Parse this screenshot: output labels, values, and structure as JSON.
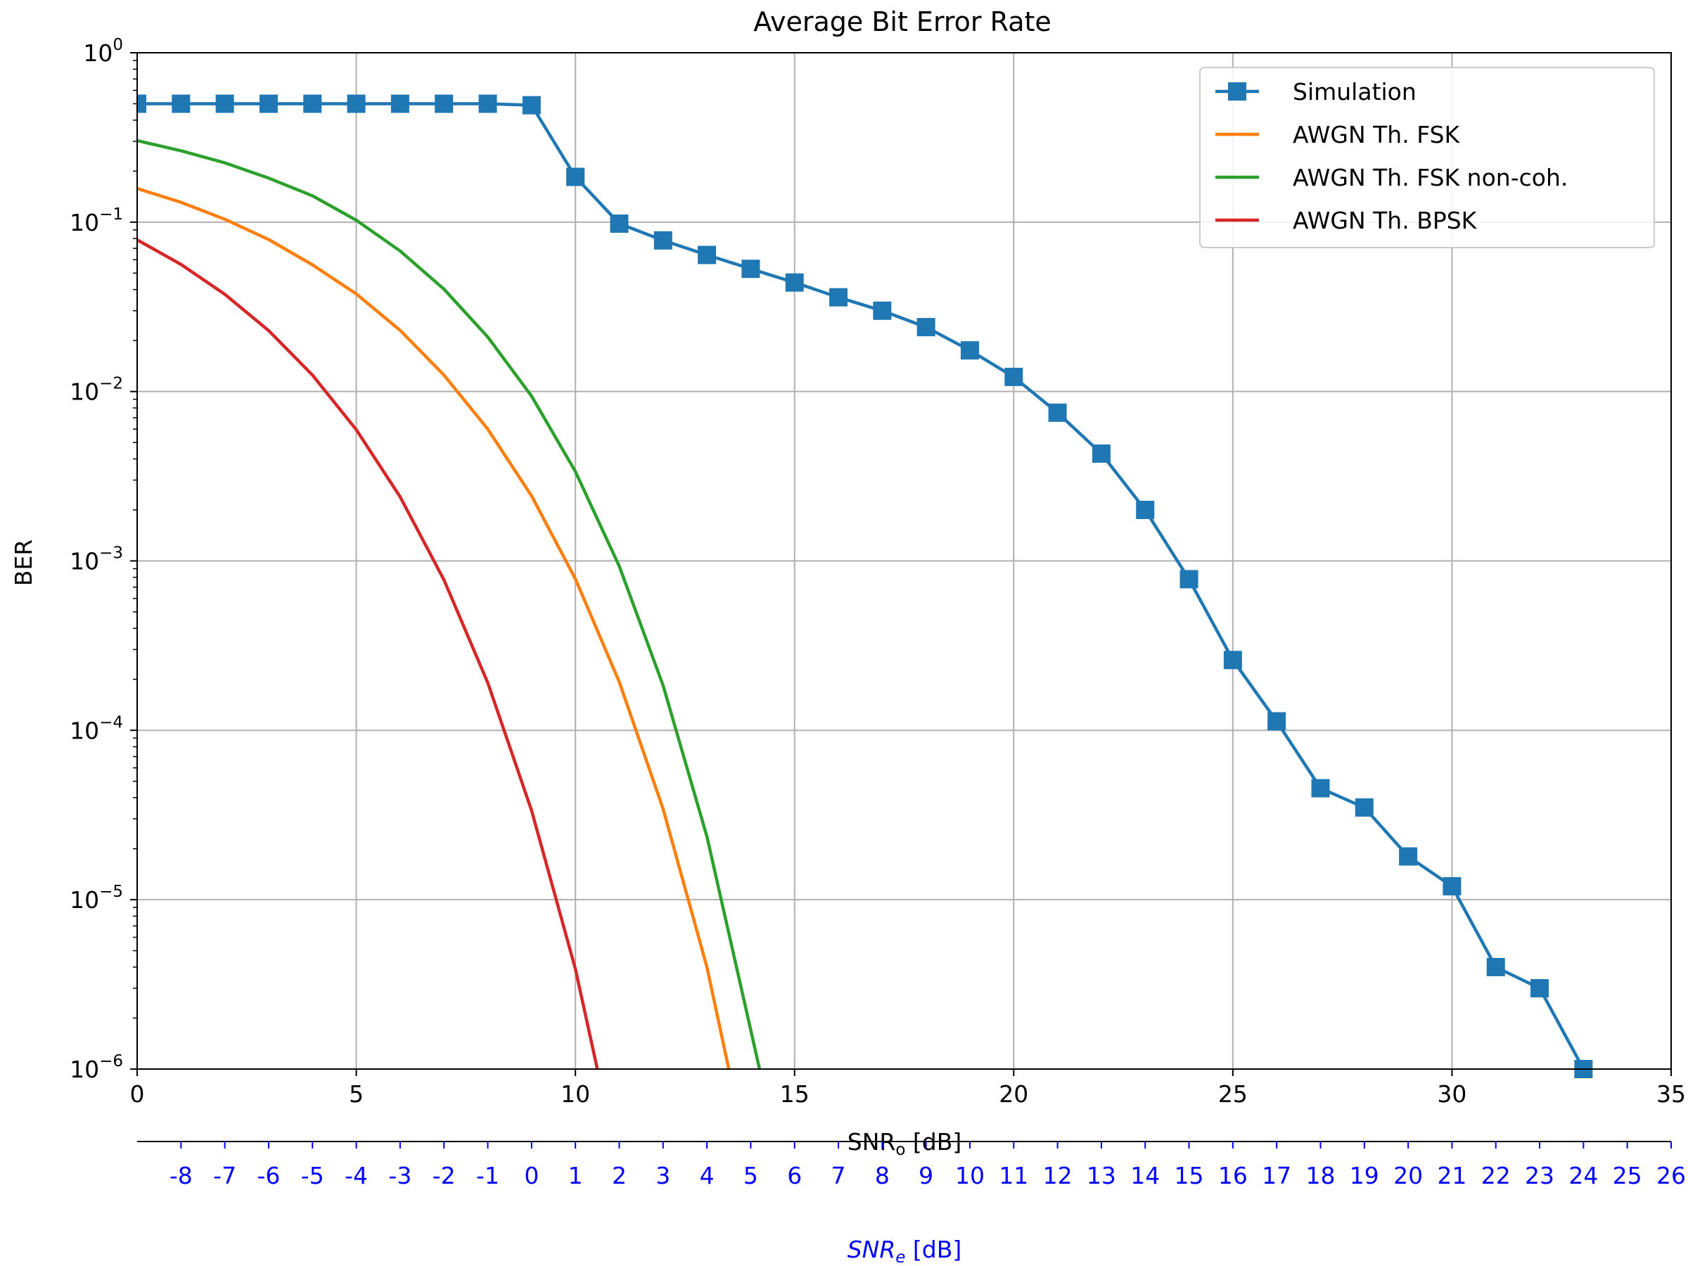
{
  "chart_data": {
    "type": "line",
    "title": "Average Bit Error Rate",
    "xlabel": {
      "main": "SNR",
      "sub": "o",
      "unit": " [dB]"
    },
    "ylabel": "BER",
    "secondary_xlabel": {
      "main": "SNR",
      "sub": "e",
      "unit": " [dB]"
    },
    "xlim": [
      0,
      35
    ],
    "ylim": [
      1e-06,
      1
    ],
    "yscale": "log",
    "grid": true,
    "legend_position": "top-right",
    "xticks": [
      0,
      5,
      10,
      15,
      20,
      25,
      30,
      35
    ],
    "yticks": [
      {
        "value": 1,
        "base": "10",
        "exp": "0"
      },
      {
        "value": 0.1,
        "base": "10",
        "exp": "−1"
      },
      {
        "value": 0.01,
        "base": "10",
        "exp": "−2"
      },
      {
        "value": 0.001,
        "base": "10",
        "exp": "−3"
      },
      {
        "value": 0.0001,
        "base": "10",
        "exp": "−4"
      },
      {
        "value": 1e-05,
        "base": "10",
        "exp": "−5"
      },
      {
        "value": 1e-06,
        "base": "10",
        "exp": "−6"
      }
    ],
    "secondary_xticks": [
      {
        "x": 1,
        "label": "-8"
      },
      {
        "x": 2,
        "label": "-7"
      },
      {
        "x": 3,
        "label": "-6"
      },
      {
        "x": 4,
        "label": "-5"
      },
      {
        "x": 5,
        "label": "-4"
      },
      {
        "x": 6,
        "label": "-3"
      },
      {
        "x": 7,
        "label": "-2"
      },
      {
        "x": 8,
        "label": "-1"
      },
      {
        "x": 9,
        "label": "0"
      },
      {
        "x": 10,
        "label": "1"
      },
      {
        "x": 11,
        "label": "2"
      },
      {
        "x": 12,
        "label": "3"
      },
      {
        "x": 13,
        "label": "4"
      },
      {
        "x": 14,
        "label": "5"
      },
      {
        "x": 15,
        "label": "6"
      },
      {
        "x": 16,
        "label": "7"
      },
      {
        "x": 17,
        "label": "8"
      },
      {
        "x": 18,
        "label": "9"
      },
      {
        "x": 19,
        "label": "10"
      },
      {
        "x": 20,
        "label": "11"
      },
      {
        "x": 21,
        "label": "12"
      },
      {
        "x": 22,
        "label": "13"
      },
      {
        "x": 23,
        "label": "14"
      },
      {
        "x": 24,
        "label": "15"
      },
      {
        "x": 25,
        "label": "16"
      },
      {
        "x": 26,
        "label": "17"
      },
      {
        "x": 27,
        "label": "18"
      },
      {
        "x": 28,
        "label": "19"
      },
      {
        "x": 29,
        "label": "20"
      },
      {
        "x": 30,
        "label": "21"
      },
      {
        "x": 31,
        "label": "22"
      },
      {
        "x": 32,
        "label": "23"
      },
      {
        "x": 33,
        "label": "24"
      },
      {
        "x": 34,
        "label": "25"
      },
      {
        "x": 35,
        "label": "26"
      }
    ],
    "series": [
      {
        "name": "Simulation",
        "color": "#1f77b4",
        "marker": "square",
        "x": [
          0,
          1,
          2,
          3,
          4,
          5,
          6,
          7,
          8,
          9,
          10,
          11,
          12,
          13,
          14,
          15,
          16,
          17,
          18,
          19,
          20,
          21,
          22,
          23,
          24,
          25,
          26,
          27,
          28,
          29,
          30,
          31,
          32,
          33
        ],
        "y": [
          0.5,
          0.5,
          0.5,
          0.5,
          0.5,
          0.5,
          0.5,
          0.5,
          0.5,
          0.49,
          0.185,
          0.098,
          0.078,
          0.064,
          0.053,
          0.044,
          0.036,
          0.03,
          0.024,
          0.0175,
          0.0122,
          0.0075,
          0.0043,
          0.002,
          0.00078,
          0.00026,
          0.000113,
          4.55e-05,
          3.5e-05,
          1.8e-05,
          1.2e-05,
          4e-06,
          3e-06,
          1e-06
        ]
      },
      {
        "name": "AWGN Th. FSK",
        "color": "#ff7f0e",
        "marker": "none",
        "x": [
          0,
          1,
          2,
          3,
          4,
          5,
          6,
          7,
          8,
          9,
          10,
          11,
          12,
          13,
          13.5
        ],
        "y": [
          0.158,
          0.131,
          0.104,
          0.079,
          0.056,
          0.0377,
          0.023,
          0.0125,
          0.006,
          0.00242,
          0.000783,
          0.000193,
          3.43e-05,
          4e-06,
          1e-06
        ]
      },
      {
        "name": "AWGN Th. FSK non-coh.",
        "color": "#2ca02c",
        "marker": "none",
        "x": [
          0,
          1,
          2,
          3,
          4,
          5,
          6,
          7,
          8,
          9,
          10,
          11,
          12,
          13,
          14,
          14.2
        ],
        "y": [
          0.303,
          0.264,
          0.224,
          0.182,
          0.143,
          0.1026,
          0.0676,
          0.0402,
          0.021,
          0.00939,
          0.00337,
          0.00093,
          0.000184,
          2.36e-05,
          1.7e-06,
          1e-06
        ]
      },
      {
        "name": "AWGN Th. BPSK",
        "color": "#d62728",
        "marker": "none",
        "x": [
          0,
          1,
          2,
          3,
          4,
          5,
          6,
          7,
          8,
          9,
          10,
          10.5
        ],
        "y": [
          0.0786,
          0.0563,
          0.0375,
          0.0229,
          0.0125,
          0.00595,
          0.00239,
          0.000773,
          0.000191,
          3.36e-05,
          3.9e-06,
          1e-06
        ]
      }
    ]
  }
}
